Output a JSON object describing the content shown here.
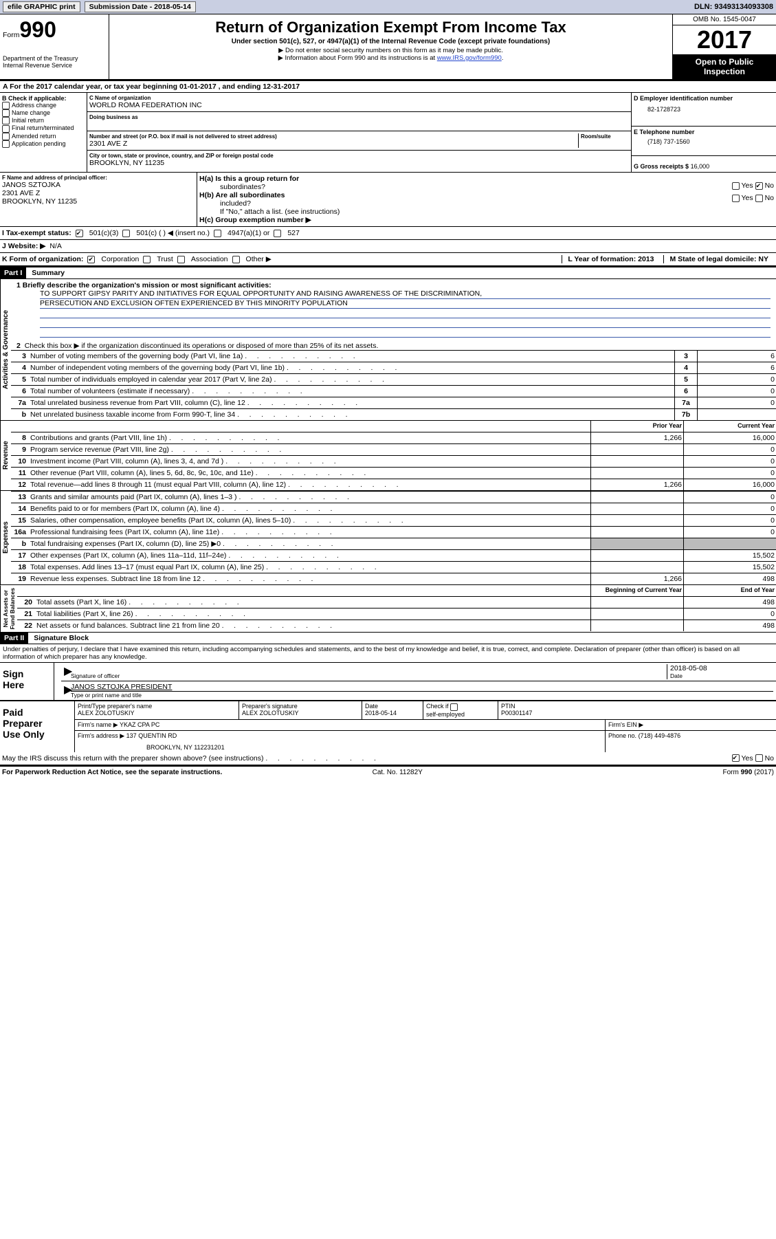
{
  "topbar": {
    "efile": "efile GRAPHIC print",
    "subdate_lbl": "Submission Date - ",
    "subdate": "2018-05-14",
    "dln_lbl": "DLN: ",
    "dln": "93493134093308"
  },
  "header": {
    "form_word": "Form",
    "form_num": "990",
    "dept1": "Department of the Treasury",
    "dept2": "Internal Revenue Service",
    "title": "Return of Organization Exempt From Income Tax",
    "sub1": "Under section 501(c), 527, or 4947(a)(1) of the Internal Revenue Code (except private foundations)",
    "sub2": "▶ Do not enter social security numbers on this form as it may be made public.",
    "sub3a": "▶ Information about Form 990 and its instructions is at ",
    "sub3link": "www.IRS.gov/form990",
    "omb": "OMB No. 1545-0047",
    "year": "2017",
    "open": "Open to Public",
    "insp": "Inspection"
  },
  "line_a": "A   For the 2017 calendar year, or tax year beginning 01-01-2017    , and ending 12-31-2017",
  "secB": {
    "hdr": "B Check if applicable:",
    "items": [
      "Address change",
      "Name change",
      "Initial return",
      "Final return/terminated",
      "Amended return",
      "Application pending"
    ],
    "c_lbl": "C Name of organization",
    "c_name": "WORLD ROMA FEDERATION INC",
    "dba_lbl": "Doing business as",
    "dba": "",
    "street_lbl": "Number and street (or P.O. box if mail is not delivered to street address)",
    "room_lbl": "Room/suite",
    "street": "2301 AVE Z",
    "city_lbl": "City or town, state or province, country, and ZIP or foreign postal code",
    "city": "BROOKLYN, NY  11235",
    "d_lbl": "D Employer identification number",
    "d_val": "82-1728723",
    "e_lbl": "E Telephone number",
    "e_val": "(718) 737-1560",
    "g_lbl": "G Gross receipts $",
    "g_val": "16,000"
  },
  "secF": {
    "f_lbl": "F  Name and address of principal officer:",
    "f_name": "JANOS SZTOJKA",
    "f_addr1": "2301 AVE Z",
    "f_addr2": "BROOKLYN, NY  11235",
    "ha": "H(a)  Is this a group return for",
    "ha2": "subordinates?",
    "yes": "Yes",
    "no": "No",
    "hb": "H(b)  Are all subordinates",
    "hb2": "included?",
    "hb_note": "If \"No,\" attach a list. (see instructions)",
    "hc": "H(c)  Group exemption number ▶"
  },
  "row_i": {
    "lbl": "I   Tax-exempt status:",
    "o1": "501(c)(3)",
    "o2": "501(c) (   ) ◀ (insert no.)",
    "o3": "4947(a)(1) or",
    "o4": "527"
  },
  "row_j": {
    "lbl": "J   Website: ▶",
    "val": "  N/A"
  },
  "row_k": {
    "lbl": "K Form of organization:",
    "o1": "Corporation",
    "o2": "Trust",
    "o3": "Association",
    "o4": "Other ▶",
    "l": "L Year of formation: 2013",
    "m": "M State of legal domicile: NY"
  },
  "part1": {
    "tag": "Part I",
    "title": "Summary",
    "m1": "1   Briefly describe the organization's mission or most significant activities:",
    "mission1": "TO SUPPORT GIPSY PARITY AND INITIATIVES FOR EQUAL OPPORTUNITY AND RAISING AWARENESS OF THE DISCRIMINATION,",
    "mission2": "PERSECUTION AND EXCLUSION OFTEN EXPERIENCED BY THIS MINORITY POPULATION",
    "l2": "Check this box ▶        if the organization discontinued its operations or disposed of more than 25% of its net assets.",
    "lines": [
      {
        "n": "3",
        "t": "Number of voting members of the governing body (Part VI, line 1a)",
        "b": "3",
        "v": "6"
      },
      {
        "n": "4",
        "t": "Number of independent voting members of the governing body (Part VI, line 1b)",
        "b": "4",
        "v": "6"
      },
      {
        "n": "5",
        "t": "Total number of individuals employed in calendar year 2017 (Part V, line 2a)",
        "b": "5",
        "v": "0"
      },
      {
        "n": "6",
        "t": "Total number of volunteers (estimate if necessary)",
        "b": "6",
        "v": "0"
      },
      {
        "n": "7a",
        "t": "Total unrelated business revenue from Part VIII, column (C), line 12",
        "b": "7a",
        "v": "0"
      },
      {
        "n": "b",
        "t": "Net unrelated business taxable income from Form 990-T, line 34",
        "b": "7b",
        "v": ""
      }
    ],
    "py": "Prior Year",
    "cy": "Current Year",
    "rev": [
      {
        "n": "8",
        "t": "Contributions and grants (Part VIII, line 1h)",
        "pv": "1,266",
        "cv": "16,000"
      },
      {
        "n": "9",
        "t": "Program service revenue (Part VIII, line 2g)",
        "pv": "",
        "cv": "0"
      },
      {
        "n": "10",
        "t": "Investment income (Part VIII, column (A), lines 3, 4, and 7d )",
        "pv": "",
        "cv": "0"
      },
      {
        "n": "11",
        "t": "Other revenue (Part VIII, column (A), lines 5, 6d, 8c, 9c, 10c, and 11e)",
        "pv": "",
        "cv": "0"
      },
      {
        "n": "12",
        "t": "Total revenue—add lines 8 through 11 (must equal Part VIII, column (A), line 12)",
        "pv": "1,266",
        "cv": "16,000"
      }
    ],
    "exp": [
      {
        "n": "13",
        "t": "Grants and similar amounts paid (Part IX, column (A), lines 1–3 )",
        "pv": "",
        "cv": "0"
      },
      {
        "n": "14",
        "t": "Benefits paid to or for members (Part IX, column (A), line 4)",
        "pv": "",
        "cv": "0"
      },
      {
        "n": "15",
        "t": "Salaries, other compensation, employee benefits (Part IX, column (A), lines 5–10)",
        "pv": "",
        "cv": "0"
      },
      {
        "n": "16a",
        "t": "Professional fundraising fees (Part IX, column (A), line 11e)",
        "pv": "",
        "cv": "0"
      },
      {
        "n": "b",
        "t": "Total fundraising expenses (Part IX, column (D), line 25) ▶0",
        "pv": "SHADE",
        "cv": "SHADE"
      },
      {
        "n": "17",
        "t": "Other expenses (Part IX, column (A), lines 11a–11d, 11f–24e)",
        "pv": "",
        "cv": "15,502"
      },
      {
        "n": "18",
        "t": "Total expenses. Add lines 13–17 (must equal Part IX, column (A), line 25)",
        "pv": "",
        "cv": "15,502"
      },
      {
        "n": "19",
        "t": "Revenue less expenses. Subtract line 18 from line 12",
        "pv": "1,266",
        "cv": "498"
      }
    ],
    "bcy": "Beginning of Current Year",
    "eoy": "End of Year",
    "net": [
      {
        "n": "20",
        "t": "Total assets (Part X, line 16)",
        "pv": "",
        "cv": "498"
      },
      {
        "n": "21",
        "t": "Total liabilities (Part X, line 26)",
        "pv": "",
        "cv": "0"
      },
      {
        "n": "22",
        "t": "Net assets or fund balances. Subtract line 21 from line 20",
        "pv": "",
        "cv": "498"
      }
    ],
    "vlab1": "Activities & Governance",
    "vlab2": "Revenue",
    "vlab3": "Expenses",
    "vlab4": "Net Assets or\nFund Balances"
  },
  "part2": {
    "tag": "Part II",
    "title": "Signature Block",
    "decl": "Under penalties of perjury, I declare that I have examined this return, including accompanying schedules and statements, and to the best of my knowledge and belief, it is true, correct, and complete. Declaration of preparer (other than officer) is based on all information of which preparer has any knowledge.",
    "sign_here": "Sign\nHere",
    "sig_of": "Signature of officer",
    "date_lbl": "Date",
    "date": "2018-05-08",
    "typed": "JANOS SZTOJKA PRESIDENT",
    "typed_lbl": "Type or print name and title",
    "paid": "Paid\nPreparer\nUse Only",
    "pp_name_lbl": "Print/Type preparer's name",
    "pp_name": "ALEX ZOLOTUSKIY",
    "pp_sig_lbl": "Preparer's signature",
    "pp_sig": "ALEX ZOLOTUSKIY",
    "pp_date_lbl": "Date",
    "pp_date": "2018-05-14",
    "pp_check": "Check        if",
    "pp_self": "self-employed",
    "ptin_lbl": "PTIN",
    "ptin": "P00301147",
    "firm_lbl": "Firm's name     ▶",
    "firm": "YKAZ CPA PC",
    "ein_lbl": "Firm's EIN ▶",
    "addr_lbl": "Firm's address ▶",
    "addr": "137 QUENTIN RD",
    "addr2": "BROOKLYN, NY  112231201",
    "phone_lbl": "Phone no.",
    "phone": "(718) 449-4876",
    "discuss": "May the IRS discuss this return with the preparer shown above? (see instructions)"
  },
  "footer": {
    "pra": "For Paperwork Reduction Act Notice, see the separate instructions.",
    "cat": "Cat. No. 11282Y",
    "form": "Form 990 (2017)"
  }
}
